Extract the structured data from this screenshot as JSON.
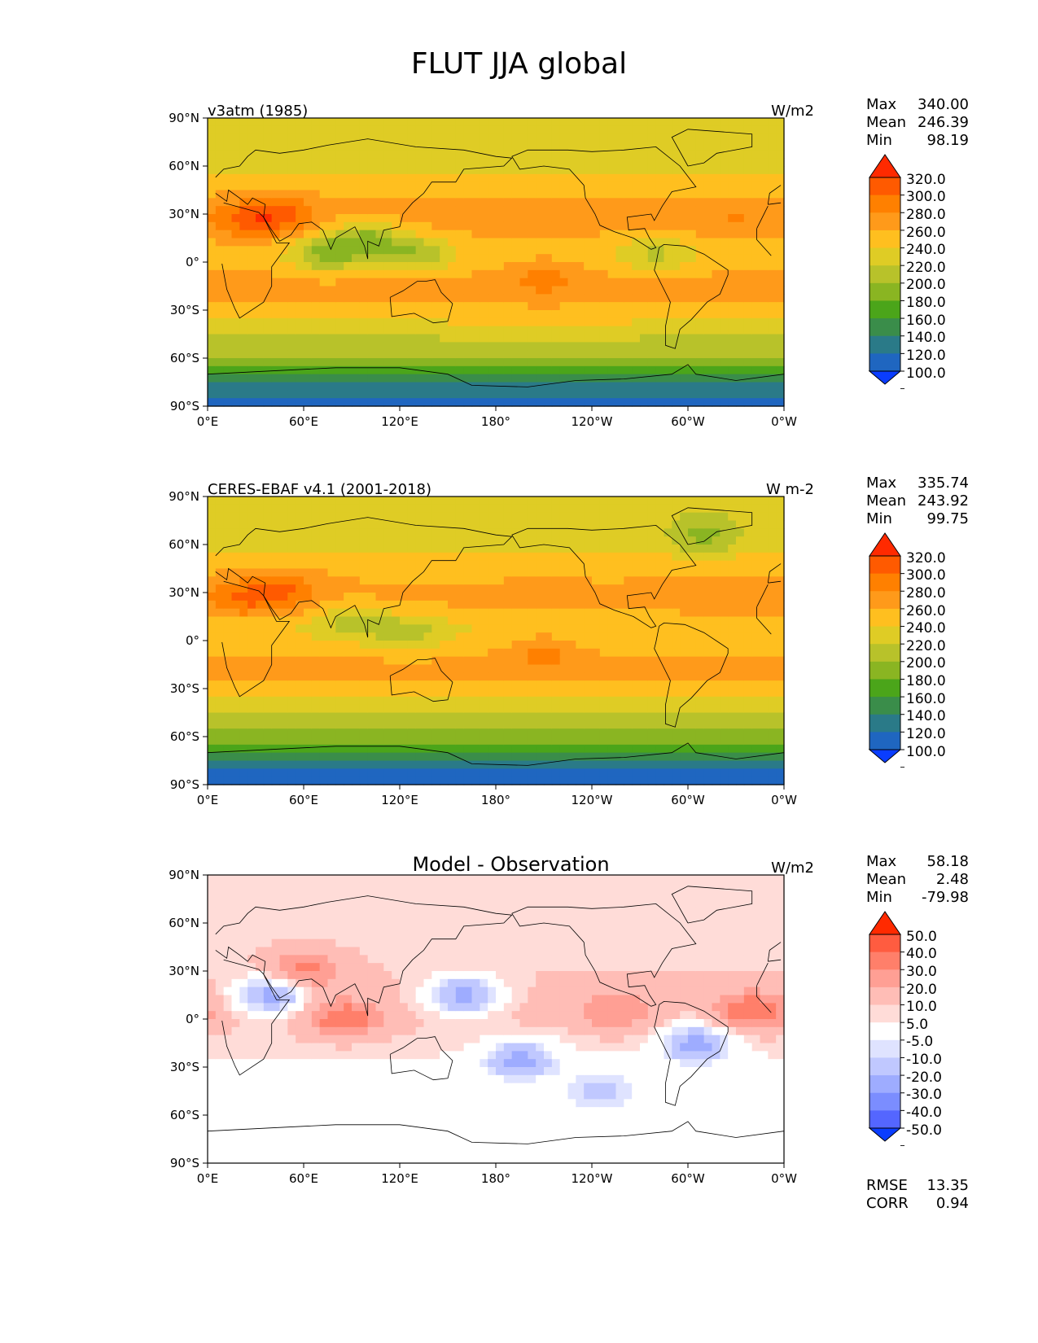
{
  "figure": {
    "title": "FLUT JJA global"
  },
  "chart_data": [
    {
      "type": "heatmap",
      "title": "v3atm (1985)",
      "units": "W/m2",
      "x_ticks": [
        "0°E",
        "60°E",
        "120°E",
        "180°",
        "120°W",
        "60°W",
        "0°W"
      ],
      "y_ticks": [
        "90°N",
        "60°N",
        "30°N",
        "0°",
        "30°S",
        "60°S",
        "90°S"
      ],
      "xlim": [
        0,
        360
      ],
      "ylim": [
        -90,
        90
      ],
      "stats": {
        "max_label": "Max",
        "max": "340.00",
        "mean_label": "Mean",
        "mean": "246.39",
        "min_label": "Min",
        "min": "98.19"
      },
      "colorbar": {
        "labels": [
          "320.0",
          "300.0",
          "280.0",
          "260.0",
          "240.0",
          "220.0",
          "200.0",
          "180.0",
          "160.0",
          "140.0",
          "120.0",
          "100.0"
        ],
        "colors": [
          "#ff2a00",
          "#ff5a00",
          "#ff8000",
          "#ff9a1a",
          "#ffbf1f",
          "#dfcc25",
          "#b8c22a",
          "#8ab522",
          "#4ba51a",
          "#3a8d4a",
          "#2a7a88",
          "#1f66c0",
          "#0a3dff"
        ]
      },
      "zonal_profile": [
        {
          "lat": 90,
          "value": 230
        },
        {
          "lat": 75,
          "value": 230
        },
        {
          "lat": 60,
          "value": 235
        },
        {
          "lat": 45,
          "value": 255
        },
        {
          "lat": 30,
          "value": 270
        },
        {
          "lat": 20,
          "value": 265
        },
        {
          "lat": 10,
          "value": 250
        },
        {
          "lat": 0,
          "value": 250
        },
        {
          "lat": -10,
          "value": 265
        },
        {
          "lat": -20,
          "value": 270
        },
        {
          "lat": -30,
          "value": 255
        },
        {
          "lat": -40,
          "value": 235
        },
        {
          "lat": -50,
          "value": 215
        },
        {
          "lat": -60,
          "value": 200
        },
        {
          "lat": -70,
          "value": 170
        },
        {
          "lat": -80,
          "value": 125
        },
        {
          "lat": -90,
          "value": 115
        }
      ],
      "features": [
        {
          "lon": 45,
          "lat": 30,
          "value": 305
        },
        {
          "lon": 25,
          "lat": 25,
          "value": 300
        },
        {
          "lon": 75,
          "lat": 5,
          "value": 195
        },
        {
          "lon": 100,
          "lat": 15,
          "value": 200
        },
        {
          "lon": 130,
          "lat": 5,
          "value": 205
        },
        {
          "lon": 210,
          "lat": -8,
          "value": 285
        },
        {
          "lon": 330,
          "lat": 25,
          "value": 280
        },
        {
          "lon": 280,
          "lat": 5,
          "value": 215
        }
      ]
    },
    {
      "type": "heatmap",
      "title": "CERES-EBAF v4.1 (2001-2018)",
      "units": "W m-2",
      "x_ticks": [
        "0°E",
        "60°E",
        "120°E",
        "180°",
        "120°W",
        "60°W",
        "0°W"
      ],
      "y_ticks": [
        "90°N",
        "60°N",
        "30°N",
        "0°",
        "30°S",
        "60°S",
        "90°S"
      ],
      "xlim": [
        0,
        360
      ],
      "ylim": [
        -90,
        90
      ],
      "stats": {
        "max_label": "Max",
        "max": "335.74",
        "mean_label": "Mean",
        "mean": "243.92",
        "min_label": "Min",
        "min": "99.75"
      },
      "colorbar": {
        "labels": [
          "320.0",
          "300.0",
          "280.0",
          "260.0",
          "240.0",
          "220.0",
          "200.0",
          "180.0",
          "160.0",
          "140.0",
          "120.0",
          "100.0"
        ],
        "colors": [
          "#ff2a00",
          "#ff5a00",
          "#ff8000",
          "#ff9a1a",
          "#ffbf1f",
          "#dfcc25",
          "#b8c22a",
          "#8ab522",
          "#4ba51a",
          "#3a8d4a",
          "#2a7a88",
          "#1f66c0",
          "#0a3dff"
        ]
      },
      "zonal_profile": [
        {
          "lat": 90,
          "value": 228
        },
        {
          "lat": 75,
          "value": 228
        },
        {
          "lat": 60,
          "value": 235
        },
        {
          "lat": 45,
          "value": 255
        },
        {
          "lat": 30,
          "value": 265
        },
        {
          "lat": 20,
          "value": 260
        },
        {
          "lat": 10,
          "value": 240
        },
        {
          "lat": 0,
          "value": 245
        },
        {
          "lat": -10,
          "value": 262
        },
        {
          "lat": -20,
          "value": 265
        },
        {
          "lat": -30,
          "value": 250
        },
        {
          "lat": -40,
          "value": 232
        },
        {
          "lat": -50,
          "value": 212
        },
        {
          "lat": -60,
          "value": 195
        },
        {
          "lat": -70,
          "value": 160
        },
        {
          "lat": -80,
          "value": 115
        },
        {
          "lat": -90,
          "value": 110
        }
      ],
      "features": [
        {
          "lon": 45,
          "lat": 32,
          "value": 305
        },
        {
          "lon": 20,
          "lat": 25,
          "value": 295
        },
        {
          "lon": 90,
          "lat": 12,
          "value": 215
        },
        {
          "lon": 125,
          "lat": 5,
          "value": 210
        },
        {
          "lon": 210,
          "lat": -6,
          "value": 285
        },
        {
          "lon": 320,
          "lat": 20,
          "value": 275
        },
        {
          "lon": 310,
          "lat": 65,
          "value": 195
        }
      ]
    },
    {
      "type": "heatmap",
      "title": "Model - Observation",
      "units": "W/m2",
      "x_ticks": [
        "0°E",
        "60°E",
        "120°E",
        "180°",
        "120°W",
        "60°W",
        "0°W"
      ],
      "y_ticks": [
        "90°N",
        "60°N",
        "30°N",
        "0°",
        "30°S",
        "60°S",
        "90°S"
      ],
      "xlim": [
        0,
        360
      ],
      "ylim": [
        -90,
        90
      ],
      "stats": {
        "max_label": "Max",
        "max": "58.18",
        "mean_label": "Mean",
        "mean": "2.48",
        "min_label": "Min",
        "min": "-79.98"
      },
      "metrics": {
        "rmse_label": "RMSE",
        "rmse": "13.35",
        "corr_label": "CORR",
        "corr": "0.94"
      },
      "colorbar": {
        "labels": [
          "50.0",
          "40.0",
          "30.0",
          "20.0",
          "10.0",
          "5.0",
          "-5.0",
          "-10.0",
          "-20.0",
          "-30.0",
          "-40.0",
          "-50.0"
        ],
        "colors": [
          "#ff2a00",
          "#ff5c40",
          "#ff7f6a",
          "#ff9f94",
          "#ffbdb6",
          "#ffdcd8",
          "#ffffff",
          "#dfe3ff",
          "#c0c8ff",
          "#9eacff",
          "#7b8dff",
          "#5466ff",
          "#0a3dff"
        ]
      },
      "zonal_profile": [
        {
          "lat": 90,
          "value": 5
        },
        {
          "lat": 60,
          "value": 8
        },
        {
          "lat": 30,
          "value": 10
        },
        {
          "lat": 0,
          "value": 12
        },
        {
          "lat": -30,
          "value": 3
        },
        {
          "lat": -60,
          "value": 3
        },
        {
          "lat": -90,
          "value": 5
        }
      ],
      "features": [
        {
          "lon": 85,
          "lat": 0,
          "value": 40
        },
        {
          "lon": 60,
          "lat": 30,
          "value": 35
        },
        {
          "lon": 340,
          "lat": 5,
          "value": 40
        },
        {
          "lon": 255,
          "lat": 5,
          "value": 30
        },
        {
          "lon": 160,
          "lat": 15,
          "value": -25
        },
        {
          "lon": 195,
          "lat": -25,
          "value": -25
        },
        {
          "lon": 305,
          "lat": -15,
          "value": -25
        },
        {
          "lon": 40,
          "lat": 15,
          "value": -25
        },
        {
          "lon": 245,
          "lat": -45,
          "value": -15
        }
      ]
    }
  ]
}
